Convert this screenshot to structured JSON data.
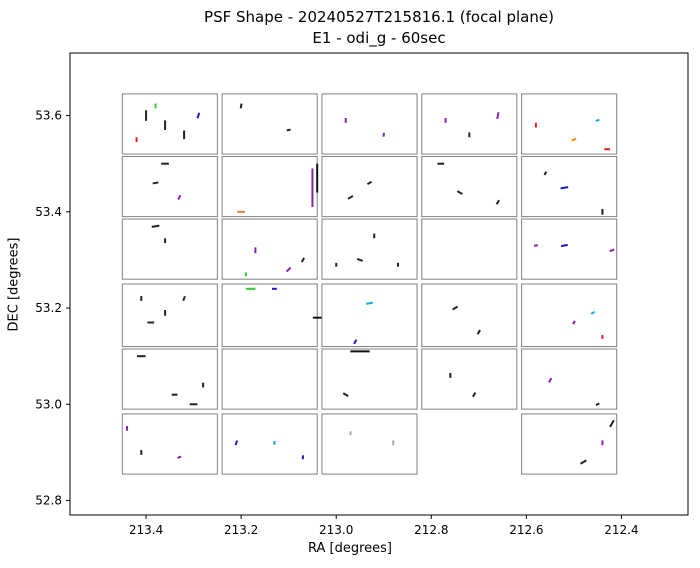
{
  "chart_data": {
    "type": "scatter",
    "title": "PSF Shape - 20240527T215816.1 (focal plane)",
    "subtitle": "E1 - odi_g - 60sec",
    "xlabel": "RA [degrees]",
    "ylabel": "DEC [degrees]",
    "xlim": [
      213.56,
      212.26
    ],
    "ylim": [
      52.77,
      53.73
    ],
    "x_inverted": true,
    "xticks": [
      213.4,
      213.2,
      213.0,
      212.8,
      212.6,
      212.4
    ],
    "xtick_labels": [
      "213.4",
      "213.2",
      "213.0",
      "212.8",
      "212.6",
      "212.4"
    ],
    "yticks": [
      52.8,
      53.0,
      53.2,
      53.4,
      53.6
    ],
    "ytick_labels": [
      "52.8",
      "53.0",
      "53.2",
      "53.4",
      "53.6"
    ],
    "grid": false,
    "ccds": [
      {
        "ra": [
          213.45,
          213.25
        ],
        "dec": [
          53.52,
          53.645
        ]
      },
      {
        "ra": [
          213.24,
          213.04
        ],
        "dec": [
          53.52,
          53.645
        ]
      },
      {
        "ra": [
          213.03,
          212.83
        ],
        "dec": [
          53.52,
          53.645
        ]
      },
      {
        "ra": [
          212.82,
          212.62
        ],
        "dec": [
          53.52,
          53.645
        ]
      },
      {
        "ra": [
          212.61,
          212.41
        ],
        "dec": [
          53.52,
          53.645
        ]
      },
      {
        "ra": [
          213.45,
          213.25
        ],
        "dec": [
          53.39,
          53.515
        ]
      },
      {
        "ra": [
          213.24,
          213.04
        ],
        "dec": [
          53.39,
          53.515
        ]
      },
      {
        "ra": [
          213.03,
          212.83
        ],
        "dec": [
          53.39,
          53.515
        ]
      },
      {
        "ra": [
          212.82,
          212.62
        ],
        "dec": [
          53.39,
          53.515
        ]
      },
      {
        "ra": [
          212.61,
          212.41
        ],
        "dec": [
          53.39,
          53.515
        ]
      },
      {
        "ra": [
          213.45,
          213.25
        ],
        "dec": [
          53.26,
          53.385
        ]
      },
      {
        "ra": [
          213.24,
          213.04
        ],
        "dec": [
          53.26,
          53.385
        ]
      },
      {
        "ra": [
          213.03,
          212.83
        ],
        "dec": [
          53.26,
          53.385
        ]
      },
      {
        "ra": [
          212.82,
          212.62
        ],
        "dec": [
          53.26,
          53.385
        ]
      },
      {
        "ra": [
          212.61,
          212.41
        ],
        "dec": [
          53.26,
          53.385
        ]
      },
      {
        "ra": [
          213.45,
          213.25
        ],
        "dec": [
          53.12,
          53.25
        ]
      },
      {
        "ra": [
          213.24,
          213.04
        ],
        "dec": [
          53.12,
          53.25
        ]
      },
      {
        "ra": [
          213.03,
          212.83
        ],
        "dec": [
          53.12,
          53.25
        ]
      },
      {
        "ra": [
          212.82,
          212.62
        ],
        "dec": [
          53.12,
          53.25
        ]
      },
      {
        "ra": [
          212.61,
          212.41
        ],
        "dec": [
          53.12,
          53.25
        ]
      },
      {
        "ra": [
          213.45,
          213.25
        ],
        "dec": [
          52.99,
          53.115
        ]
      },
      {
        "ra": [
          213.24,
          213.04
        ],
        "dec": [
          52.99,
          53.115
        ]
      },
      {
        "ra": [
          213.03,
          212.83
        ],
        "dec": [
          52.99,
          53.115
        ]
      },
      {
        "ra": [
          212.82,
          212.62
        ],
        "dec": [
          52.99,
          53.115
        ]
      },
      {
        "ra": [
          212.61,
          212.41
        ],
        "dec": [
          52.99,
          53.115
        ]
      },
      {
        "ra": [
          213.45,
          213.25
        ],
        "dec": [
          52.855,
          52.98
        ]
      },
      {
        "ra": [
          213.24,
          213.04
        ],
        "dec": [
          52.855,
          52.98
        ]
      },
      {
        "ra": [
          213.03,
          212.83
        ],
        "dec": [
          52.855,
          52.98
        ]
      },
      {
        "ra": [
          212.61,
          212.41
        ],
        "dec": [
          52.855,
          52.98
        ]
      }
    ],
    "whiskers": [
      {
        "ra": 213.4,
        "dec": 53.6,
        "len": 0.022,
        "ang": 90,
        "color": "#222222"
      },
      {
        "ra": 213.36,
        "dec": 53.58,
        "len": 0.02,
        "ang": 90,
        "color": "#222222"
      },
      {
        "ra": 213.32,
        "dec": 53.56,
        "len": 0.018,
        "ang": 90,
        "color": "#222222"
      },
      {
        "ra": 213.29,
        "dec": 53.6,
        "len": 0.012,
        "ang": 70,
        "color": "#1a1acc"
      },
      {
        "ra": 213.42,
        "dec": 53.55,
        "len": 0.01,
        "ang": 90,
        "color": "#e02020"
      },
      {
        "ra": 213.38,
        "dec": 53.62,
        "len": 0.01,
        "ang": 90,
        "color": "#33cc33"
      },
      {
        "ra": 213.2,
        "dec": 53.62,
        "len": 0.01,
        "ang": 80,
        "color": "#222222"
      },
      {
        "ra": 213.1,
        "dec": 53.57,
        "len": 0.008,
        "ang": 10,
        "color": "#222222"
      },
      {
        "ra": 212.98,
        "dec": 53.59,
        "len": 0.01,
        "ang": 90,
        "color": "#8822aa"
      },
      {
        "ra": 212.9,
        "dec": 53.56,
        "len": 0.008,
        "ang": 80,
        "color": "#8822aa"
      },
      {
        "ra": 212.77,
        "dec": 53.59,
        "len": 0.01,
        "ang": 90,
        "color": "#8822aa"
      },
      {
        "ra": 212.72,
        "dec": 53.56,
        "len": 0.01,
        "ang": 90,
        "color": "#222222"
      },
      {
        "ra": 212.66,
        "dec": 53.6,
        "len": 0.014,
        "ang": 80,
        "color": "#8822aa"
      },
      {
        "ra": 212.45,
        "dec": 53.59,
        "len": 0.008,
        "ang": 20,
        "color": "#1fa8e0"
      },
      {
        "ra": 212.5,
        "dec": 53.55,
        "len": 0.01,
        "ang": 20,
        "color": "#ff8800"
      },
      {
        "ra": 212.43,
        "dec": 53.53,
        "len": 0.012,
        "ang": 0,
        "color": "#e02020"
      },
      {
        "ra": 212.58,
        "dec": 53.58,
        "len": 0.01,
        "ang": 90,
        "color": "#e02020"
      },
      {
        "ra": 213.38,
        "dec": 53.46,
        "len": 0.012,
        "ang": 10,
        "color": "#222222"
      },
      {
        "ra": 213.33,
        "dec": 53.43,
        "len": 0.01,
        "ang": 60,
        "color": "#8822aa"
      },
      {
        "ra": 213.36,
        "dec": 53.5,
        "len": 0.016,
        "ang": 0,
        "color": "#222222"
      },
      {
        "ra": 213.05,
        "dec": 53.45,
        "len": 0.08,
        "ang": 90,
        "color": "#8822aa"
      },
      {
        "ra": 213.04,
        "dec": 53.47,
        "len": 0.06,
        "ang": 90,
        "color": "#111111"
      },
      {
        "ra": 213.2,
        "dec": 53.4,
        "len": 0.016,
        "ang": 0,
        "color": "#cc8833"
      },
      {
        "ra": 212.97,
        "dec": 53.43,
        "len": 0.012,
        "ang": 30,
        "color": "#222222"
      },
      {
        "ra": 212.93,
        "dec": 53.46,
        "len": 0.01,
        "ang": 30,
        "color": "#222222"
      },
      {
        "ra": 212.78,
        "dec": 53.5,
        "len": 0.014,
        "ang": 0,
        "color": "#222222"
      },
      {
        "ra": 212.74,
        "dec": 53.44,
        "len": 0.012,
        "ang": 150,
        "color": "#222222"
      },
      {
        "ra": 212.66,
        "dec": 53.42,
        "len": 0.01,
        "ang": 60,
        "color": "#222222"
      },
      {
        "ra": 212.52,
        "dec": 53.45,
        "len": 0.016,
        "ang": 10,
        "color": "#1a1acc"
      },
      {
        "ra": 212.44,
        "dec": 53.4,
        "len": 0.012,
        "ang": 90,
        "color": "#222222"
      },
      {
        "ra": 212.56,
        "dec": 53.48,
        "len": 0.008,
        "ang": 60,
        "color": "#222222"
      },
      {
        "ra": 213.38,
        "dec": 53.37,
        "len": 0.016,
        "ang": 10,
        "color": "#222222"
      },
      {
        "ra": 213.36,
        "dec": 53.34,
        "len": 0.01,
        "ang": 90,
        "color": "#222222"
      },
      {
        "ra": 213.17,
        "dec": 53.32,
        "len": 0.012,
        "ang": 90,
        "color": "#8822aa"
      },
      {
        "ra": 213.1,
        "dec": 53.28,
        "len": 0.012,
        "ang": 45,
        "color": "#8822aa"
      },
      {
        "ra": 213.19,
        "dec": 53.27,
        "len": 0.008,
        "ang": 90,
        "color": "#33cc33"
      },
      {
        "ra": 213.07,
        "dec": 53.3,
        "len": 0.01,
        "ang": 60,
        "color": "#222222"
      },
      {
        "ra": 212.92,
        "dec": 53.35,
        "len": 0.01,
        "ang": 90,
        "color": "#222222"
      },
      {
        "ra": 212.95,
        "dec": 53.3,
        "len": 0.012,
        "ang": 160,
        "color": "#222222"
      },
      {
        "ra": 213.0,
        "dec": 53.29,
        "len": 0.008,
        "ang": 90,
        "color": "#222222"
      },
      {
        "ra": 212.87,
        "dec": 53.29,
        "len": 0.008,
        "ang": 90,
        "color": "#222222"
      },
      {
        "ra": 212.52,
        "dec": 53.33,
        "len": 0.014,
        "ang": 10,
        "color": "#1a1acc"
      },
      {
        "ra": 212.58,
        "dec": 53.33,
        "len": 0.008,
        "ang": 10,
        "color": "#8822aa"
      },
      {
        "ra": 212.42,
        "dec": 53.32,
        "len": 0.01,
        "ang": 20,
        "color": "#8822aa"
      },
      {
        "ra": 213.39,
        "dec": 53.17,
        "len": 0.014,
        "ang": 0,
        "color": "#222222"
      },
      {
        "ra": 213.36,
        "dec": 53.19,
        "len": 0.012,
        "ang": 90,
        "color": "#222222"
      },
      {
        "ra": 213.32,
        "dec": 53.22,
        "len": 0.01,
        "ang": 70,
        "color": "#222222"
      },
      {
        "ra": 213.41,
        "dec": 53.22,
        "len": 0.01,
        "ang": 90,
        "color": "#222222"
      },
      {
        "ra": 213.18,
        "dec": 53.24,
        "len": 0.02,
        "ang": 0,
        "color": "#33cc33"
      },
      {
        "ra": 213.13,
        "dec": 53.24,
        "len": 0.01,
        "ang": 0,
        "color": "#1a1acc"
      },
      {
        "ra": 213.04,
        "dec": 53.18,
        "len": 0.018,
        "ang": 0,
        "color": "#111111"
      },
      {
        "ra": 212.93,
        "dec": 53.21,
        "len": 0.014,
        "ang": 10,
        "color": "#1fa8e0"
      },
      {
        "ra": 212.96,
        "dec": 53.13,
        "len": 0.01,
        "ang": 60,
        "color": "#1a1acc"
      },
      {
        "ra": 212.75,
        "dec": 53.2,
        "len": 0.012,
        "ang": 30,
        "color": "#222222"
      },
      {
        "ra": 212.7,
        "dec": 53.15,
        "len": 0.01,
        "ang": 60,
        "color": "#222222"
      },
      {
        "ra": 212.5,
        "dec": 53.17,
        "len": 0.008,
        "ang": 60,
        "color": "#8822aa"
      },
      {
        "ra": 212.46,
        "dec": 53.19,
        "len": 0.008,
        "ang": 30,
        "color": "#1fa8e0"
      },
      {
        "ra": 212.44,
        "dec": 53.14,
        "len": 0.008,
        "ang": 90,
        "color": "#e02020"
      },
      {
        "ra": 213.41,
        "dec": 53.1,
        "len": 0.018,
        "ang": 0,
        "color": "#222222"
      },
      {
        "ra": 213.34,
        "dec": 53.02,
        "len": 0.012,
        "ang": 0,
        "color": "#222222"
      },
      {
        "ra": 213.28,
        "dec": 53.04,
        "len": 0.01,
        "ang": 90,
        "color": "#222222"
      },
      {
        "ra": 213.3,
        "dec": 53.0,
        "len": 0.016,
        "ang": 0,
        "color": "#222222"
      },
      {
        "ra": 212.98,
        "dec": 53.02,
        "len": 0.012,
        "ang": 150,
        "color": "#222222"
      },
      {
        "ra": 212.95,
        "dec": 53.11,
        "len": 0.04,
        "ang": 0,
        "color": "#111111"
      },
      {
        "ra": 212.76,
        "dec": 53.06,
        "len": 0.01,
        "ang": 90,
        "color": "#222222"
      },
      {
        "ra": 212.71,
        "dec": 53.02,
        "len": 0.01,
        "ang": 60,
        "color": "#222222"
      },
      {
        "ra": 212.55,
        "dec": 53.05,
        "len": 0.01,
        "ang": 60,
        "color": "#8822aa"
      },
      {
        "ra": 212.45,
        "dec": 53.0,
        "len": 0.008,
        "ang": 30,
        "color": "#222222"
      },
      {
        "ra": 213.44,
        "dec": 52.95,
        "len": 0.01,
        "ang": 90,
        "color": "#8822aa"
      },
      {
        "ra": 213.41,
        "dec": 52.9,
        "len": 0.01,
        "ang": 90,
        "color": "#222222"
      },
      {
        "ra": 213.33,
        "dec": 52.89,
        "len": 0.008,
        "ang": 20,
        "color": "#8822aa"
      },
      {
        "ra": 213.21,
        "dec": 52.92,
        "len": 0.01,
        "ang": 70,
        "color": "#1a1acc"
      },
      {
        "ra": 213.13,
        "dec": 52.92,
        "len": 0.008,
        "ang": 90,
        "color": "#1fa8e0"
      },
      {
        "ra": 213.07,
        "dec": 52.89,
        "len": 0.008,
        "ang": 80,
        "color": "#1a1acc"
      },
      {
        "ra": 212.97,
        "dec": 52.94,
        "len": 0.008,
        "ang": 90,
        "color": "#aaaaaa"
      },
      {
        "ra": 212.88,
        "dec": 52.92,
        "len": 0.01,
        "ang": 90,
        "color": "#aaaaaa"
      },
      {
        "ra": 212.48,
        "dec": 52.88,
        "len": 0.014,
        "ang": 30,
        "color": "#222222"
      },
      {
        "ra": 212.44,
        "dec": 52.92,
        "len": 0.01,
        "ang": 90,
        "color": "#8822aa"
      },
      {
        "ra": 212.42,
        "dec": 52.96,
        "len": 0.016,
        "ang": 60,
        "color": "#222222"
      }
    ]
  }
}
